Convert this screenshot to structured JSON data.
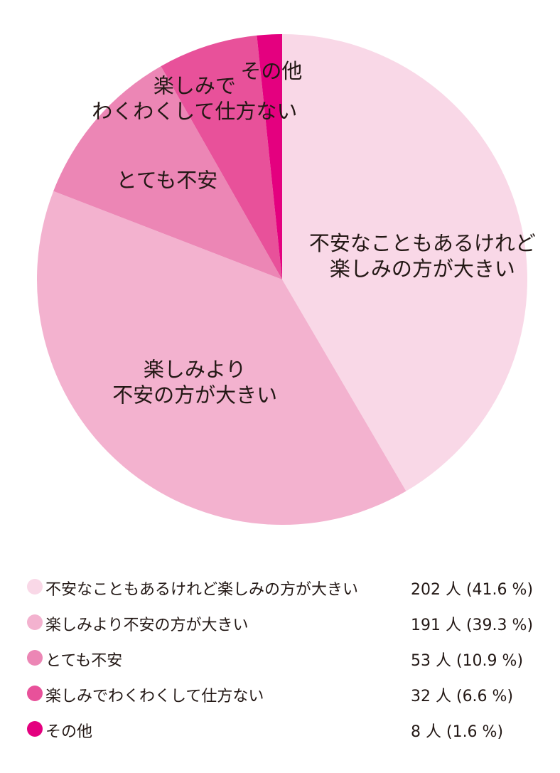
{
  "chart_data": {
    "type": "pie",
    "start": "12 o'clock, clockwise",
    "categories": [
      "不安なこともあるけれど楽しみの方が大きい",
      "楽しみより不安の方が大きい",
      "とても不安",
      "楽しみでわくわくして仕方ない",
      "その他"
    ],
    "slice_labels": [
      [
        "不安なこともあるけれど",
        "楽しみの方が大きい"
      ],
      [
        "楽しみより",
        "不安の方が大きい"
      ],
      [
        "とても不安"
      ],
      [
        "楽しみで",
        "わくわくして仕方ない"
      ],
      [
        "その他"
      ]
    ],
    "counts": [
      202,
      191,
      53,
      32,
      8
    ],
    "percents": [
      41.6,
      39.3,
      10.9,
      6.6,
      1.6
    ],
    "colors": [
      "#f9d8e7",
      "#f3b2cf",
      "#ec86b5",
      "#e8519a",
      "#e4007f"
    ]
  },
  "legend": {
    "items": [
      {
        "label": "不安なこともあるけれど楽しみの方が大きい",
        "value": "202 人 (41.6 %)",
        "color": "#f9d8e7"
      },
      {
        "label": "楽しみより不安の方が大きい",
        "value": "191 人 (39.3 %)",
        "color": "#f3b2cf"
      },
      {
        "label": "とても不安",
        "value": "53 人 (10.9 %)",
        "color": "#ec86b5"
      },
      {
        "label": "楽しみでわくわくして仕方ない",
        "value": "32 人 (6.6 %)",
        "color": "#e8519a"
      },
      {
        "label": "その他",
        "value": "8 人 (1.6 %)",
        "color": "#e4007f"
      }
    ]
  }
}
